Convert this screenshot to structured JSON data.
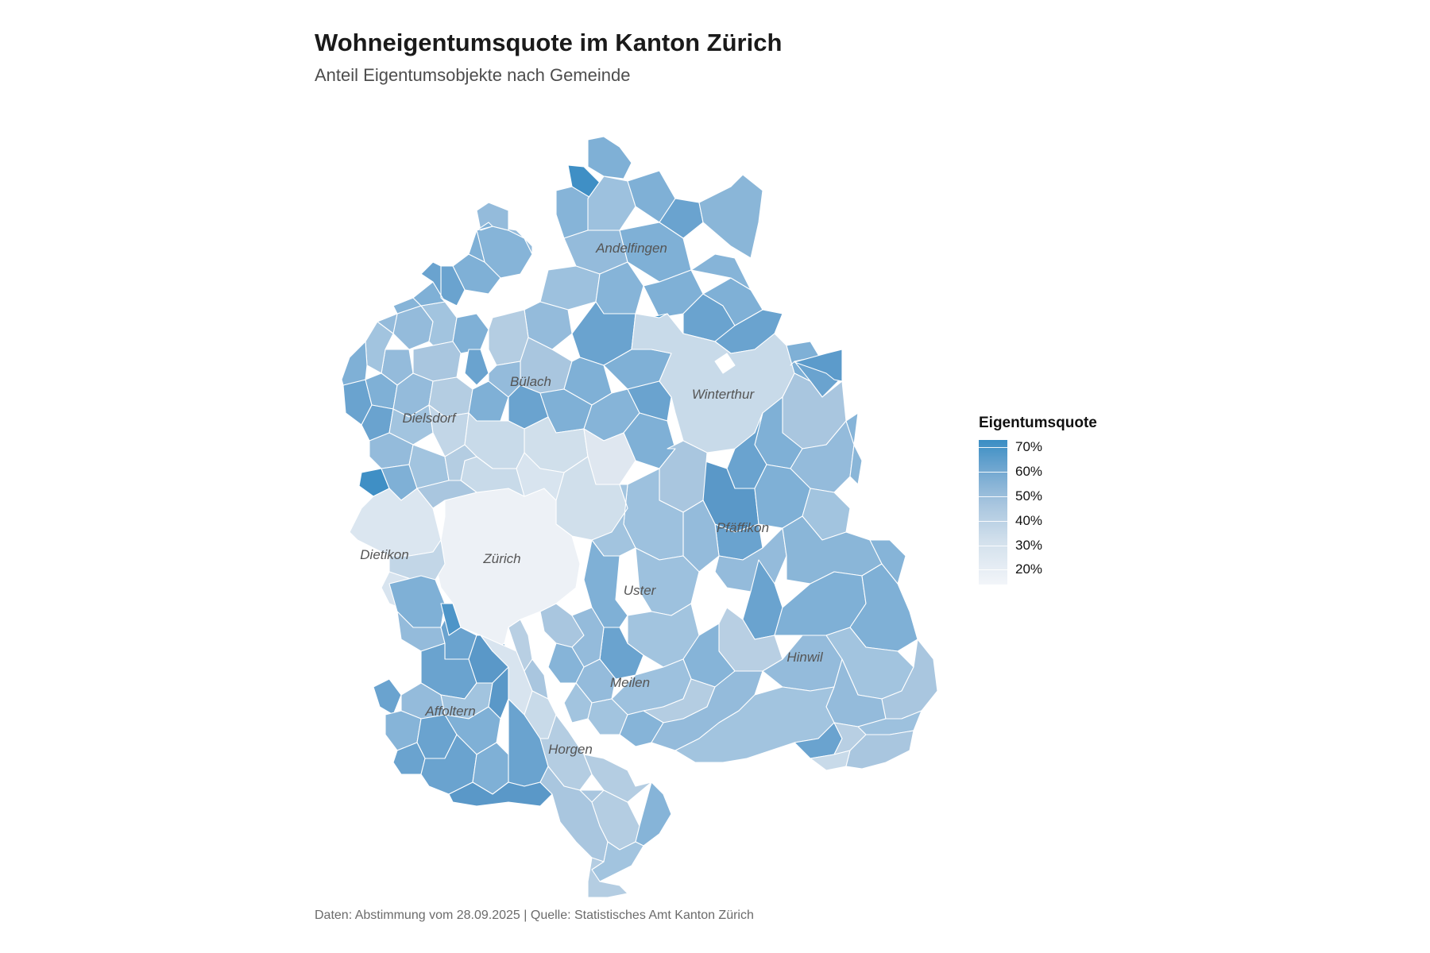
{
  "header": {
    "title": "Wohneigentumsquote im Kanton Zürich",
    "subtitle": "Anteil Eigentumsobjekte nach Gemeinde"
  },
  "caption": "Daten: Abstimmung vom 28.09.2025 | Quelle: Statistisches Amt Kanton Zürich",
  "legend": {
    "title": "Eigentumsquote",
    "range": [
      0.14,
      0.73
    ],
    "ticks": [
      {
        "value": 0.7,
        "label": "70%"
      },
      {
        "value": 0.6,
        "label": "60%"
      },
      {
        "value": 0.5,
        "label": "50%"
      },
      {
        "value": 0.4,
        "label": "40%"
      },
      {
        "value": 0.3,
        "label": "30%"
      },
      {
        "value": 0.2,
        "label": "20%"
      }
    ],
    "color_low": "#f2f5f9",
    "color_high": "#3a8ec4"
  },
  "districts": [
    {
      "name": "Andelfingen"
    },
    {
      "name": "Bülach"
    },
    {
      "name": "Dielsdorf"
    },
    {
      "name": "Winterthur"
    },
    {
      "name": "Pfäffikon"
    },
    {
      "name": "Dietikon"
    },
    {
      "name": "Zürich"
    },
    {
      "name": "Uster"
    },
    {
      "name": "Hinwil"
    },
    {
      "name": "Meilen"
    },
    {
      "name": "Affoltern"
    },
    {
      "name": "Horgen"
    }
  ],
  "colors": {
    "water": "#ffffff",
    "border": "#ffffff"
  }
}
